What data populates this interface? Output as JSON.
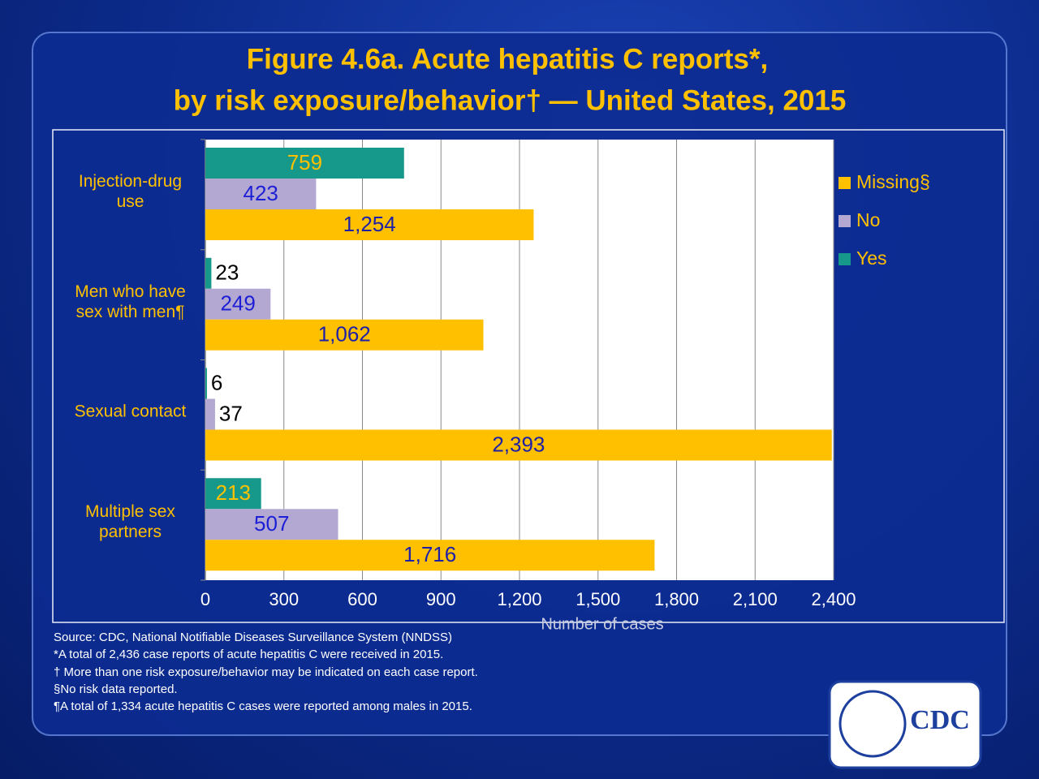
{
  "chart_data": {
    "type": "hbar",
    "title": "Figure 4.6a. Acute hepatitis C reports*,",
    "subtitle": "by risk exposure/behavior† — United States, 2015",
    "x_label": "Number of cases",
    "categories": [
      "Injection-drug use",
      "Men who have sex with men¶",
      "Sexual contact",
      "Multiple sex partners"
    ],
    "series": [
      {
        "name": "Yes",
        "color": "#16988a",
        "label_color": "#ffc000",
        "values": [
          759,
          23,
          6,
          213
        ]
      },
      {
        "name": "No",
        "color": "#b3a8d1",
        "label_color": "#1d1fd6",
        "values": [
          423,
          249,
          37,
          507
        ]
      },
      {
        "name": "Missing§",
        "color": "#ffc000",
        "label_color": "#1d1fa8",
        "values": [
          1254,
          1062,
          2393,
          1716
        ]
      }
    ],
    "value_labels": [
      [
        "759",
        "23",
        "6",
        "213"
      ],
      [
        "423",
        "249",
        "37",
        "507"
      ],
      [
        "1,254",
        "1,062",
        "2,393",
        "1,716"
      ]
    ],
    "xlim": [
      0,
      2400
    ],
    "xticks": [
      0,
      300,
      600,
      900,
      {
        "value": 1200,
        "label": "1,200"
      },
      {
        "value": 1500,
        "label": "1,500"
      },
      {
        "value": 1800,
        "label": "1,800"
      },
      {
        "value": 2100,
        "label": "2,100"
      },
      {
        "value": 2400,
        "label": "2,400"
      }
    ],
    "grid": true,
    "legend": "right",
    "footnotes": [
      "Source: CDC,  National Notifiable Diseases Surveillance System (NNDSS)",
      "*A total of 2,436 case reports of acute hepatitis C were received in 2015.",
      "† More than one risk exposure/behavior may be indicated on each case report.",
      "§No risk data reported.",
      "¶A total of 1,334 acute hepatitis C cases were reported among males in 2015."
    ],
    "logo_text": "CDC"
  }
}
